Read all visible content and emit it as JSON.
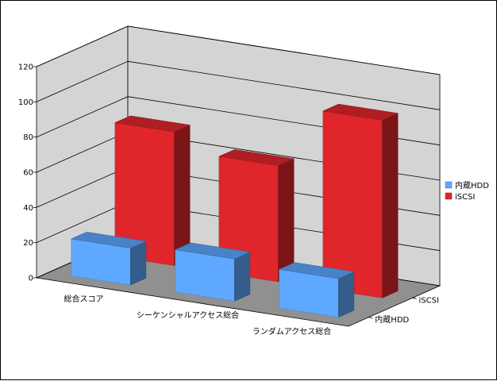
{
  "chart_data": {
    "type": "bar",
    "subtype": "3d-column",
    "categories": [
      "総合スコア",
      "シーケンシャルアクセス総合",
      "ランダムアクセス総合"
    ],
    "depth_categories": [
      "内蔵HDD",
      "iSCSI"
    ],
    "series": [
      {
        "name": "内蔵HDD",
        "values": [
          21,
          24,
          22
        ],
        "color": "#5ea8ff"
      },
      {
        "name": "iSCSI",
        "values": [
          76,
          66,
          101
        ],
        "color": "#e0262b"
      }
    ],
    "yticks": [
      0,
      20,
      40,
      60,
      80,
      100,
      120
    ],
    "ylim": [
      0,
      120
    ],
    "grid": true,
    "legend_position": "right",
    "wall_color": "#d4d4d4",
    "floor_color": "#909090",
    "title": "",
    "xlabel": "",
    "ylabel": ""
  }
}
